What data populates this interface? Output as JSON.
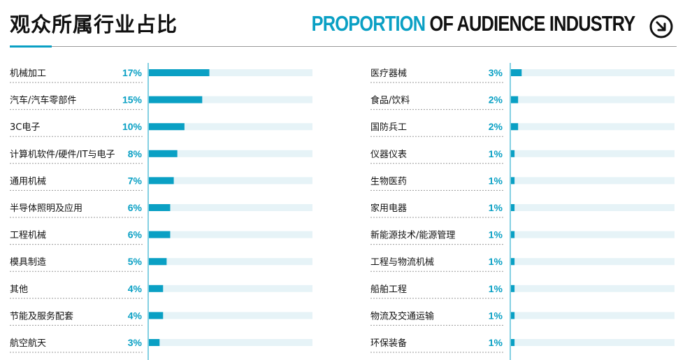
{
  "header": {
    "title_cn": "观众所属行业占比",
    "title_en_accent": "PROPORTION",
    "title_en_rest": " OF AUDIENCE INDUSTRY"
  },
  "colors": {
    "accent": "#0aa0c4",
    "track": "#e6f3f7",
    "text": "#111111"
  },
  "icons": {
    "corner": "arrow-down-right-circle-icon"
  },
  "chart_data": [
    {
      "type": "bar",
      "orientation": "horizontal",
      "xlim": [
        0,
        46
      ],
      "categories": [
        "机械加工",
        "汽车/汽车零部件",
        "3C电子",
        "计算机软件/硬件/IT与电子",
        "通用机械",
        "半导体照明及应用",
        "工程机械",
        "模具制造",
        "其他",
        "节能及服务配套",
        "航空航天"
      ],
      "values": [
        17,
        15,
        10,
        8,
        7,
        6,
        6,
        5,
        4,
        4,
        3
      ],
      "value_labels": [
        "17%",
        "15%",
        "10%",
        "8%",
        "7%",
        "6%",
        "6%",
        "5%",
        "4%",
        "4%",
        "3%"
      ]
    },
    {
      "type": "bar",
      "orientation": "horizontal",
      "xlim": [
        0,
        46
      ],
      "categories": [
        "医疗器械",
        "食品/饮料",
        "国防兵工",
        "仪器仪表",
        "生物医药",
        "家用电器",
        "新能源技术/能源管理",
        "工程与物流机械",
        "船舶工程",
        "物流及交通运输",
        "环保装备"
      ],
      "values": [
        3,
        2,
        2,
        1,
        1,
        1,
        1,
        1,
        1,
        1,
        1
      ],
      "value_labels": [
        "3%",
        "2%",
        "2%",
        "1%",
        "1%",
        "1%",
        "1%",
        "1%",
        "1%",
        "1%",
        "1%"
      ]
    }
  ]
}
